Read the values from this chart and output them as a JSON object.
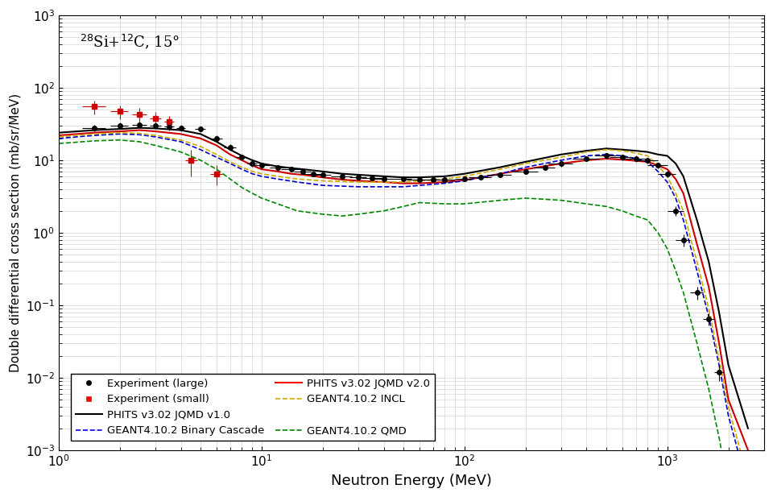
{
  "title": "$^{28}$Si+$^{12}$C, 15°",
  "xlabel": "Neutron Energy (MeV)",
  "ylabel": "Double differential cross section (mb/sr/MeV)",
  "xlim": [
    1,
    3000
  ],
  "ylim": [
    0.001,
    1000.0
  ],
  "exp_large_x": [
    1.5,
    2.0,
    2.5,
    3.0,
    3.5,
    4.0,
    5.0,
    6.0,
    7.0,
    8.0,
    9.0,
    10.0,
    12.0,
    14.0,
    16.0,
    18.0,
    20.0,
    25.0,
    30.0,
    35.0,
    40.0,
    50.0,
    60.0,
    70.0,
    80.0,
    100.0,
    120.0,
    150.0,
    200.0,
    250.0,
    300.0,
    400.0,
    500.0,
    600.0,
    700.0,
    800.0,
    900.0,
    1000.0,
    1100.0,
    1200.0,
    1400.0,
    1600.0,
    1800.0
  ],
  "exp_large_y": [
    28.0,
    30.0,
    31.0,
    30.0,
    29.0,
    28.0,
    27.0,
    20.0,
    15.0,
    11.0,
    9.0,
    8.5,
    8.0,
    7.5,
    7.0,
    6.5,
    6.3,
    6.0,
    5.8,
    5.7,
    5.6,
    5.5,
    5.4,
    5.4,
    5.4,
    5.5,
    5.8,
    6.3,
    7.0,
    8.0,
    9.0,
    10.5,
    11.5,
    11.0,
    10.5,
    10.0,
    8.5,
    6.5,
    2.0,
    0.8,
    0.15,
    0.065,
    0.012
  ],
  "exp_large_xerr_lo": [
    0.2,
    0.2,
    0.2,
    0.2,
    0.2,
    0.2,
    0.3,
    0.4,
    0.5,
    0.5,
    0.5,
    1.0,
    1.0,
    1.5,
    1.5,
    2.0,
    2.0,
    3.0,
    3.0,
    4.0,
    5.0,
    5.0,
    8.0,
    8.0,
    10.0,
    10.0,
    15.0,
    20.0,
    30.0,
    30.0,
    40.0,
    60.0,
    60.0,
    80.0,
    80.0,
    100.0,
    100.0,
    100.0,
    100.0,
    100.0,
    100.0,
    100.0,
    100.0
  ],
  "exp_large_xerr_hi": [
    0.2,
    0.2,
    0.2,
    0.2,
    0.2,
    0.2,
    0.3,
    0.4,
    0.5,
    0.5,
    0.5,
    1.0,
    1.0,
    1.5,
    1.5,
    2.0,
    2.0,
    3.0,
    3.0,
    4.0,
    5.0,
    5.0,
    8.0,
    8.0,
    10.0,
    10.0,
    15.0,
    20.0,
    30.0,
    30.0,
    40.0,
    60.0,
    60.0,
    80.0,
    80.0,
    100.0,
    100.0,
    100.0,
    100.0,
    100.0,
    100.0,
    100.0,
    100.0
  ],
  "exp_large_yerr": [
    3.0,
    3.0,
    3.0,
    3.0,
    3.0,
    3.0,
    2.5,
    2.0,
    1.5,
    1.0,
    0.8,
    0.7,
    0.6,
    0.6,
    0.5,
    0.5,
    0.5,
    0.4,
    0.4,
    0.4,
    0.4,
    0.4,
    0.4,
    0.3,
    0.3,
    0.4,
    0.4,
    0.5,
    0.6,
    0.7,
    0.8,
    0.9,
    1.0,
    1.0,
    1.0,
    0.9,
    0.8,
    0.7,
    0.3,
    0.15,
    0.03,
    0.012,
    0.003
  ],
  "exp_small_x": [
    1.5,
    2.0,
    2.5,
    3.0,
    3.5,
    4.5,
    6.0
  ],
  "exp_small_y": [
    55.0,
    47.0,
    43.0,
    38.0,
    34.0,
    10.0,
    6.5
  ],
  "exp_small_xerr": [
    0.2,
    0.2,
    0.2,
    0.2,
    0.2,
    0.3,
    0.4
  ],
  "exp_small_yerr_lo": [
    12.0,
    10.0,
    9.0,
    8.0,
    7.0,
    4.0,
    2.0
  ],
  "exp_small_yerr_hi": [
    12.0,
    10.0,
    9.0,
    8.0,
    7.0,
    4.0,
    2.0
  ],
  "phits_jqmd_v1_x": [
    1.0,
    1.5,
    2.0,
    2.5,
    3.0,
    4.0,
    5.0,
    6.0,
    7.0,
    8.0,
    9.0,
    10.0,
    12.0,
    14.0,
    16.0,
    20.0,
    25.0,
    30.0,
    40.0,
    50.0,
    60.0,
    80.0,
    100.0,
    150.0,
    200.0,
    300.0,
    400.0,
    500.0,
    600.0,
    700.0,
    800.0,
    900.0,
    1000.0,
    1100.0,
    1200.0,
    1400.0,
    1600.0,
    1800.0,
    2000.0,
    2500.0
  ],
  "phits_jqmd_v1_y": [
    24.0,
    26.0,
    27.0,
    28.0,
    27.5,
    26.0,
    23.0,
    18.0,
    14.0,
    11.5,
    10.0,
    9.0,
    8.2,
    7.8,
    7.5,
    7.0,
    6.5,
    6.3,
    6.0,
    5.8,
    5.8,
    6.0,
    6.5,
    8.0,
    9.5,
    12.0,
    13.5,
    14.5,
    14.0,
    13.5,
    13.0,
    12.0,
    11.5,
    9.0,
    6.0,
    1.5,
    0.4,
    0.08,
    0.015,
    0.002
  ],
  "phits_jqmd_v2_x": [
    1.0,
    1.5,
    2.0,
    2.5,
    3.0,
    4.0,
    5.0,
    6.0,
    7.0,
    8.0,
    9.0,
    10.0,
    12.0,
    14.0,
    16.0,
    20.0,
    25.0,
    30.0,
    40.0,
    50.0,
    60.0,
    80.0,
    100.0,
    150.0,
    200.0,
    300.0,
    400.0,
    500.0,
    600.0,
    700.0,
    800.0,
    900.0,
    1000.0,
    1100.0,
    1200.0,
    1400.0,
    1600.0,
    1800.0,
    2000.0,
    2500.0
  ],
  "phits_jqmd_v2_y": [
    22.0,
    24.0,
    25.0,
    26.0,
    25.0,
    23.0,
    20.0,
    16.0,
    12.0,
    10.0,
    8.5,
    7.5,
    7.0,
    6.5,
    6.3,
    5.8,
    5.4,
    5.2,
    5.0,
    4.8,
    4.8,
    5.0,
    5.3,
    6.5,
    7.5,
    9.0,
    10.0,
    10.5,
    10.2,
    9.8,
    9.5,
    8.5,
    7.5,
    5.5,
    3.5,
    0.7,
    0.18,
    0.03,
    0.005,
    0.001
  ],
  "geant4_binary_x": [
    1.0,
    1.5,
    2.0,
    2.5,
    3.0,
    4.0,
    5.0,
    6.0,
    7.0,
    8.0,
    9.0,
    10.0,
    12.0,
    15.0,
    20.0,
    30.0,
    50.0,
    80.0,
    100.0,
    150.0,
    200.0,
    300.0,
    400.0,
    500.0,
    600.0,
    700.0,
    800.0,
    900.0,
    1000.0,
    1100.0,
    1200.0,
    1400.0,
    1600.0,
    1800.0,
    2000.0,
    2500.0
  ],
  "geant4_binary_y": [
    20.0,
    22.0,
    23.0,
    22.5,
    21.0,
    18.0,
    14.0,
    11.0,
    9.0,
    7.5,
    6.5,
    6.0,
    5.5,
    5.0,
    4.5,
    4.3,
    4.3,
    4.8,
    5.2,
    6.5,
    8.0,
    10.0,
    11.5,
    12.0,
    11.5,
    10.5,
    9.5,
    7.0,
    5.0,
    3.0,
    1.5,
    0.3,
    0.07,
    0.015,
    0.003,
    0.0003
  ],
  "geant4_incl_x": [
    1.0,
    1.5,
    2.0,
    2.5,
    3.0,
    4.0,
    5.0,
    6.0,
    7.0,
    8.0,
    9.0,
    10.0,
    12.0,
    15.0,
    20.0,
    30.0,
    50.0,
    80.0,
    100.0,
    150.0,
    200.0,
    300.0,
    400.0,
    500.0,
    600.0,
    700.0,
    800.0,
    900.0,
    1000.0,
    1100.0,
    1200.0,
    1400.0,
    1600.0,
    1800.0,
    2000.0,
    2500.0
  ],
  "geant4_incl_y": [
    21.0,
    23.0,
    24.0,
    23.5,
    22.0,
    19.0,
    15.5,
    12.0,
    9.5,
    8.0,
    7.0,
    6.5,
    6.0,
    5.5,
    5.2,
    5.0,
    5.0,
    5.5,
    6.0,
    7.5,
    9.0,
    11.0,
    13.0,
    14.0,
    13.5,
    12.5,
    11.5,
    8.5,
    6.0,
    3.5,
    2.0,
    0.4,
    0.09,
    0.018,
    0.004,
    0.0004
  ],
  "geant4_qmd_x": [
    1.0,
    1.5,
    2.0,
    2.5,
    3.0,
    4.0,
    5.0,
    6.0,
    7.0,
    8.0,
    9.0,
    10.0,
    12.0,
    15.0,
    20.0,
    25.0,
    30.0,
    40.0,
    50.0,
    60.0,
    80.0,
    100.0,
    150.0,
    200.0,
    300.0,
    400.0,
    500.0,
    600.0,
    700.0,
    800.0,
    900.0,
    1000.0,
    1100.0,
    1200.0,
    1400.0,
    1600.0,
    1800.0,
    2000.0,
    2500.0
  ],
  "geant4_qmd_y": [
    17.0,
    18.5,
    19.0,
    18.0,
    16.0,
    13.0,
    10.0,
    7.5,
    5.5,
    4.2,
    3.5,
    3.0,
    2.5,
    2.0,
    1.8,
    1.7,
    1.8,
    2.0,
    2.3,
    2.6,
    2.5,
    2.5,
    2.8,
    3.0,
    2.8,
    2.5,
    2.3,
    2.0,
    1.7,
    1.5,
    1.0,
    0.6,
    0.3,
    0.15,
    0.03,
    0.007,
    0.0015,
    0.0003,
    5e-05
  ],
  "color_phits_v1": "#000000",
  "color_phits_v2": "#cc0000",
  "color_geant4_binary": "#0000cc",
  "color_geant4_incl": "#ccaa00",
  "color_geant4_qmd": "#008800",
  "color_exp_large": "#000000",
  "color_exp_small": "#cc0000"
}
